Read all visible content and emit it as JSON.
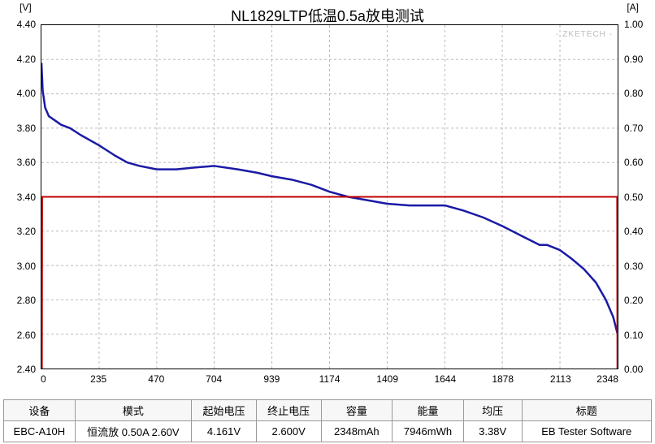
{
  "chart": {
    "title": "NL1829LTP低温0.5a放电测试",
    "watermark": "- ZKETECH -",
    "y_left_unit": "[V]",
    "y_right_unit": "[A]",
    "background_color": "#ffffff",
    "grid_color": "#bbbbbb",
    "grid_dash": "3,3",
    "border_color": "#000000",
    "x_axis": {
      "min": 0,
      "max": 2348,
      "ticks": [
        0,
        235,
        470,
        704,
        939,
        1174,
        1409,
        1644,
        1878,
        2113,
        2348
      ]
    },
    "y_left": {
      "min": 2.4,
      "max": 4.4,
      "ticks": [
        2.4,
        2.6,
        2.8,
        3.0,
        3.2,
        3.4,
        3.6,
        3.8,
        4.0,
        4.2,
        4.4
      ],
      "decimals": 2
    },
    "y_right": {
      "min": 0.0,
      "max": 1.0,
      "ticks": [
        0.0,
        0.1,
        0.2,
        0.3,
        0.4,
        0.5,
        0.6,
        0.7,
        0.8,
        0.9,
        1.0
      ],
      "decimals": 2
    },
    "series": [
      {
        "name": "voltage",
        "axis": "left",
        "color": "#1a1aa6",
        "width": 2.5,
        "points": [
          [
            0,
            4.18
          ],
          [
            5,
            4.02
          ],
          [
            15,
            3.92
          ],
          [
            30,
            3.87
          ],
          [
            50,
            3.85
          ],
          [
            80,
            3.82
          ],
          [
            117,
            3.8
          ],
          [
            160,
            3.76
          ],
          [
            235,
            3.7
          ],
          [
            300,
            3.64
          ],
          [
            350,
            3.6
          ],
          [
            400,
            3.58
          ],
          [
            470,
            3.56
          ],
          [
            550,
            3.56
          ],
          [
            620,
            3.57
          ],
          [
            704,
            3.58
          ],
          [
            800,
            3.56
          ],
          [
            880,
            3.54
          ],
          [
            939,
            3.52
          ],
          [
            1020,
            3.5
          ],
          [
            1100,
            3.47
          ],
          [
            1174,
            3.43
          ],
          [
            1250,
            3.4
          ],
          [
            1330,
            3.38
          ],
          [
            1409,
            3.36
          ],
          [
            1500,
            3.35
          ],
          [
            1580,
            3.35
          ],
          [
            1644,
            3.35
          ],
          [
            1720,
            3.32
          ],
          [
            1800,
            3.28
          ],
          [
            1878,
            3.23
          ],
          [
            1960,
            3.17
          ],
          [
            2030,
            3.12
          ],
          [
            2060,
            3.12
          ],
          [
            2113,
            3.09
          ],
          [
            2160,
            3.04
          ],
          [
            2210,
            2.98
          ],
          [
            2260,
            2.9
          ],
          [
            2300,
            2.8
          ],
          [
            2330,
            2.7
          ],
          [
            2348,
            2.6
          ]
        ]
      },
      {
        "name": "current",
        "axis": "right",
        "color": "#c00000",
        "width": 2,
        "points": [
          [
            0,
            0.0
          ],
          [
            2,
            0.0
          ],
          [
            3,
            0.5
          ],
          [
            2346,
            0.5
          ],
          [
            2347,
            0.0
          ],
          [
            2348,
            0.0
          ]
        ]
      }
    ]
  },
  "table": {
    "columns": [
      "设备",
      "模式",
      "起始电压",
      "终止电压",
      "容量",
      "能量",
      "均压",
      "标题"
    ],
    "row": [
      "EBC-A10H",
      "恒流放 0.50A 2.60V",
      "4.161V",
      "2.600V",
      "2348mAh",
      "7946mWh",
      "3.38V",
      "EB Tester Software"
    ],
    "col_widths": [
      "11%",
      "18%",
      "10%",
      "10%",
      "11%",
      "11%",
      "9%",
      "20%"
    ]
  }
}
